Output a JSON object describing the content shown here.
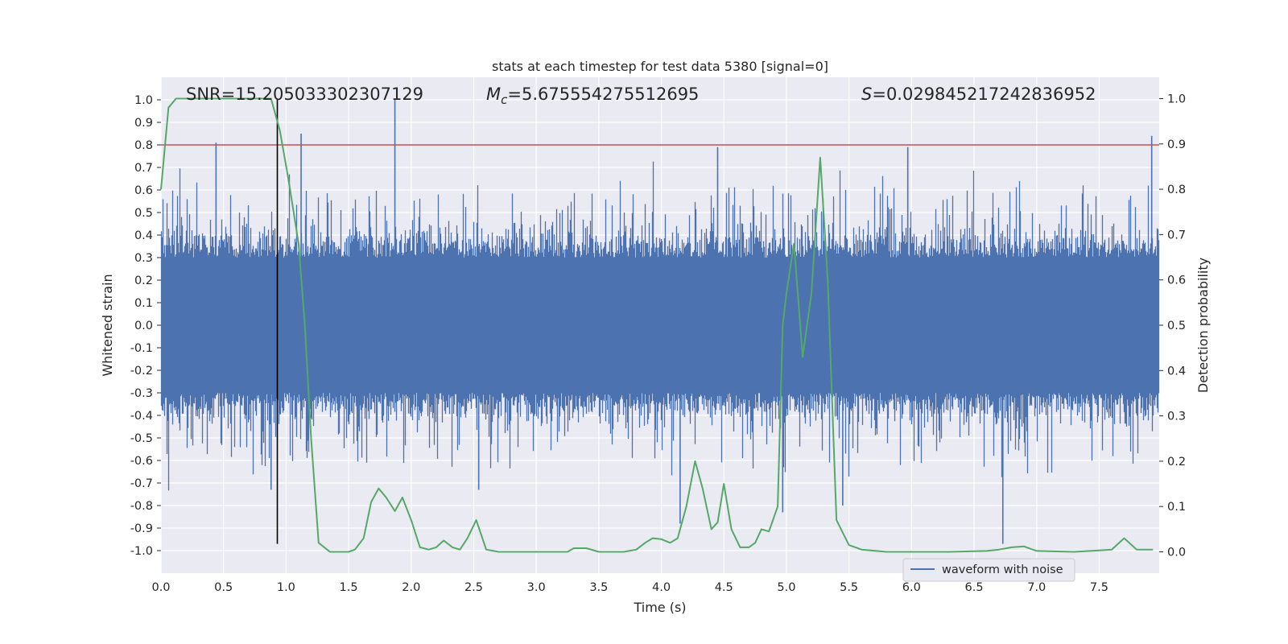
{
  "chart_data": {
    "type": "line",
    "title": "stats at each timestep for test data 5380 [signal=0]",
    "xlabel": "Time (s)",
    "ylabel": "Whitened strain",
    "y2label": "Detection probability",
    "xlim": [
      0.0,
      7.98
    ],
    "ylim": [
      -1.1,
      1.1
    ],
    "y2lim": [
      -0.047,
      1.047
    ],
    "grid": true,
    "x_ticks": [
      0.0,
      0.5,
      1.0,
      1.5,
      2.0,
      2.5,
      3.0,
      3.5,
      4.0,
      4.5,
      5.0,
      5.5,
      6.0,
      6.5,
      7.0,
      7.5
    ],
    "x_tick_labels": [
      "0.0",
      "0.5",
      "1.0",
      "1.5",
      "2.0",
      "2.5",
      "3.0",
      "3.5",
      "4.0",
      "4.5",
      "5.0",
      "5.5",
      "6.0",
      "6.5",
      "7.0",
      "7.5"
    ],
    "y_ticks": [
      1.0,
      0.9,
      0.8,
      0.7,
      0.6,
      0.5,
      0.4,
      0.3,
      0.2,
      0.1,
      0.0,
      -0.1,
      -0.2,
      -0.3,
      -0.4,
      -0.5,
      -0.6,
      -0.7,
      -0.8,
      -0.9,
      -1.0
    ],
    "y_tick_labels": [
      "1.0",
      "0.9",
      "0.8",
      "0.7",
      "0.6",
      "0.5",
      "0.4",
      "0.3",
      "0.2",
      "0.1",
      "0.0",
      "-0.1",
      "-0.2",
      "-0.3",
      "-0.4",
      "-0.5",
      "-0.6",
      "-0.7",
      "-0.8",
      "-0.9",
      "-1.0"
    ],
    "y2_ticks": [
      1.0,
      0.9,
      0.8,
      0.7,
      0.6,
      0.5,
      0.4,
      0.3,
      0.2,
      0.1,
      0.0
    ],
    "y2_tick_labels": [
      "1.0",
      "0.9",
      "0.8",
      "0.7",
      "0.6",
      "0.5",
      "0.4",
      "0.3",
      "0.2",
      "0.1",
      "0.0"
    ],
    "annotations": {
      "snr": "SNR=15.205033302307129",
      "mc_symbol": "M",
      "mc_sub": "c",
      "mc_value": "=5.675554275512695",
      "s_symbol": "S",
      "s_value": "=0.029845217242836952"
    },
    "threshold_line": {
      "y": 0.8,
      "color": "#c44e52"
    },
    "marker_line": {
      "x": 0.93,
      "y_top": 1.0,
      "y_bottom": -0.97,
      "color": "#000000"
    },
    "series": [
      {
        "name": "waveform with noise",
        "axis": "left",
        "color": "#4c72b0",
        "envelope": "dense noise roughly between -0.45 and 0.45 with spikes",
        "spikes": [
          [
            0.44,
            0.81
          ],
          [
            1.12,
            0.85
          ],
          [
            1.87,
            1.0
          ],
          [
            4.45,
            0.79
          ],
          [
            5.97,
            0.79
          ],
          [
            7.92,
            0.84
          ],
          [
            0.88,
            -0.73
          ],
          [
            2.54,
            -0.73
          ],
          [
            4.15,
            -0.88
          ],
          [
            4.97,
            -0.83
          ],
          [
            5.45,
            -0.8
          ],
          [
            6.73,
            -0.97
          ]
        ],
        "legend_entry": true
      },
      {
        "name": "detection probability",
        "axis": "right",
        "color": "#55a868",
        "legend_entry": false,
        "x": [
          0.0,
          0.06,
          0.12,
          0.2,
          0.3,
          0.4,
          0.5,
          0.6,
          0.7,
          0.8,
          0.88,
          0.95,
          1.02,
          1.1,
          1.15,
          1.2,
          1.26,
          1.35,
          1.45,
          1.5,
          1.55,
          1.62,
          1.68,
          1.74,
          1.8,
          1.87,
          1.93,
          2.0,
          2.07,
          2.14,
          2.2,
          2.26,
          2.33,
          2.39,
          2.45,
          2.52,
          2.6,
          2.7,
          2.8,
          3.0,
          3.15,
          3.25,
          3.3,
          3.4,
          3.5,
          3.6,
          3.7,
          3.8,
          3.87,
          3.93,
          4.0,
          4.07,
          4.13,
          4.2,
          4.27,
          4.33,
          4.4,
          4.45,
          4.5,
          4.56,
          4.63,
          4.7,
          4.75,
          4.8,
          4.86,
          4.93,
          4.97,
          5.0,
          5.06,
          5.13,
          5.2,
          5.27,
          5.33,
          5.4,
          5.5,
          5.6,
          5.8,
          6.0,
          6.3,
          6.6,
          6.7,
          6.8,
          6.9,
          7.0,
          7.3,
          7.5,
          7.6,
          7.7,
          7.8,
          7.93
        ],
        "y": [
          0.8,
          0.98,
          1.0,
          1.0,
          1.0,
          1.0,
          1.0,
          1.0,
          1.0,
          1.0,
          1.0,
          0.93,
          0.82,
          0.68,
          0.5,
          0.25,
          0.02,
          0.0,
          0.0,
          0.0,
          0.005,
          0.03,
          0.11,
          0.14,
          0.12,
          0.09,
          0.12,
          0.07,
          0.01,
          0.005,
          0.01,
          0.025,
          0.01,
          0.005,
          0.03,
          0.07,
          0.005,
          0.0,
          0.0,
          0.0,
          0.0,
          0.0,
          0.008,
          0.008,
          0.0,
          0.0,
          0.0,
          0.005,
          0.02,
          0.03,
          0.028,
          0.02,
          0.03,
          0.1,
          0.2,
          0.14,
          0.05,
          0.065,
          0.15,
          0.05,
          0.01,
          0.01,
          0.02,
          0.05,
          0.045,
          0.1,
          0.5,
          0.57,
          0.68,
          0.43,
          0.57,
          0.87,
          0.6,
          0.07,
          0.015,
          0.005,
          0.0,
          0.0,
          0.0,
          0.002,
          0.005,
          0.01,
          0.012,
          0.002,
          0.0,
          0.003,
          0.005,
          0.03,
          0.005,
          0.005
        ]
      }
    ]
  }
}
